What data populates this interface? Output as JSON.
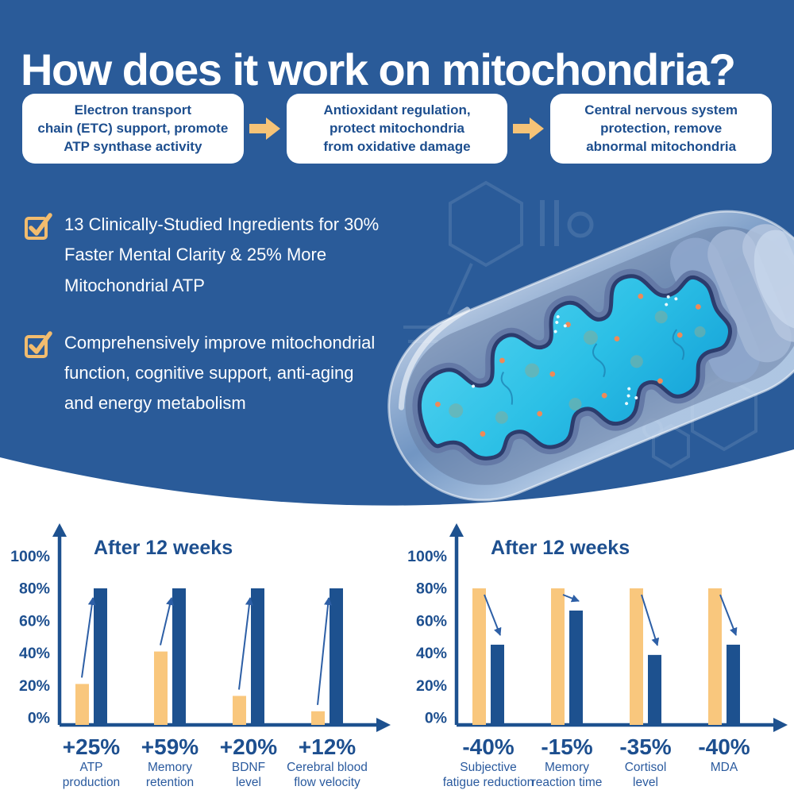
{
  "header": {
    "title": "How does it work on mitochondria?"
  },
  "flow": {
    "steps": [
      {
        "text": "Electron transport\nchain (ETC) support, promote\nATP synthase activity"
      },
      {
        "text": "Antioxidant regulation,\nprotect mitochondria\nfrom oxidative damage"
      },
      {
        "text": "Central nervous system\nprotection, remove\nabnormal mitochondria"
      }
    ]
  },
  "bullets": {
    "items": [
      {
        "text": "13 Clinically-Studied Ingredients for 30% Faster Mental Clarity & 25% More Mitochondrial ATP"
      },
      {
        "text": "Comprehensively improve mitochondrial function, cognitive support, anti-aging and energy metabolism"
      }
    ]
  },
  "chart_data": [
    {
      "type": "bar",
      "title": "After 12 weeks",
      "arrow": "up",
      "yticks": [
        "100%",
        "80%",
        "60%",
        "40%",
        "20%",
        "0%"
      ],
      "ylim": [
        0,
        100
      ],
      "grid": false,
      "legend": "none",
      "series_names": [
        "before",
        "after 12 weeks"
      ],
      "colors": {
        "before": "#f9c77d",
        "after": "#1d518f"
      },
      "groups": [
        {
          "delta": "+25%",
          "label_lines": [
            "ATP",
            "production"
          ],
          "before": 24,
          "after": 80
        },
        {
          "delta": "+59%",
          "label_lines": [
            "Memory",
            "retention"
          ],
          "before": 43,
          "after": 80
        },
        {
          "delta": "+20%",
          "label_lines": [
            "BDNF",
            "level"
          ],
          "before": 17,
          "after": 80
        },
        {
          "delta": "+12%",
          "label_lines": [
            "Cerebral blood",
            "flow velocity"
          ],
          "before": 8,
          "after": 80
        }
      ]
    },
    {
      "type": "bar",
      "title": "After 12 weeks",
      "arrow": "down",
      "yticks": [
        "100%",
        "80%",
        "60%",
        "40%",
        "20%",
        "0%"
      ],
      "ylim": [
        0,
        100
      ],
      "grid": false,
      "legend": "none",
      "series_names": [
        "before",
        "after 12 weeks"
      ],
      "colors": {
        "before": "#f9c77d",
        "after": "#1d518f"
      },
      "groups": [
        {
          "delta": "-40%",
          "label_lines": [
            "Subjective",
            "fatigue reduction"
          ],
          "before": 80,
          "after": 47
        },
        {
          "delta": "-15%",
          "label_lines": [
            "Memory",
            "reaction time"
          ],
          "before": 80,
          "after": 67
        },
        {
          "delta": "-35%",
          "label_lines": [
            "Cortisol",
            "level"
          ],
          "before": 80,
          "after": 41
        },
        {
          "delta": "-40%",
          "label_lines": [
            "MDA"
          ],
          "before": 80,
          "after": 47
        }
      ]
    }
  ],
  "colors": {
    "hero_background": "#2a5b99",
    "accent_orange": "#f6c377",
    "deep_blue_text": "#1d4e8e",
    "bar_orange": "#f9c77d",
    "bar_blue": "#1d518f",
    "matrix_cyan": "#2cc0e6",
    "white": "#ffffff"
  }
}
